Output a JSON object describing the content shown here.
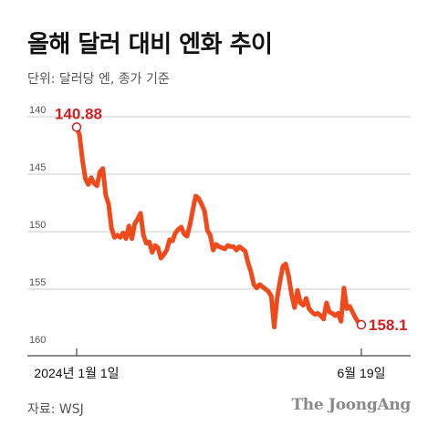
{
  "header": {
    "title": "올해 달러 대비 엔화 추이",
    "unit": "단위: 달러당 엔, 종가 기준"
  },
  "footer": {
    "source": "자료: WSJ",
    "brand": "The JoongAng"
  },
  "colors": {
    "line": "#f04a1c",
    "label": "#d21f1f",
    "grid": "#cccccc",
    "axis": "#444444"
  },
  "chart_data": {
    "type": "line",
    "title": "올해 달러 대비 엔화 추이",
    "ylabel": "단위: 달러당 엔, 종가 기준",
    "y_axis_inverted": true,
    "ylim": [
      140,
      160
    ],
    "y_ticks": [
      "140",
      "145",
      "150",
      "155",
      "160"
    ],
    "x_ticks": [
      "2024년 1월 1일",
      "6월 19일"
    ],
    "start_label": "140.88",
    "end_label": "158.1",
    "series": [
      {
        "values": [
          140.9,
          141.6,
          143.8,
          145.4,
          145.9,
          145.3,
          145.8,
          146.0,
          144.8,
          144.5,
          146.8,
          147.6,
          149.7,
          150.5,
          150.3,
          150.5,
          150.1,
          150.6,
          149.5,
          150.6,
          149.3,
          148.9,
          148.4,
          150.3,
          151.0,
          150.9,
          151.8,
          151.2,
          151.4,
          152.3,
          152.0,
          151.6,
          150.7,
          150.8,
          150.1,
          149.8,
          149.6,
          150.2,
          150.4,
          149.4,
          148.1,
          146.9,
          147.1,
          147.6,
          148.2,
          149.9,
          150.3,
          151.6,
          151.1,
          151.3,
          151.4,
          151.5,
          151.2,
          151.3,
          151.3,
          151.6,
          151.3,
          151.5,
          151.7,
          152.7,
          153.5,
          154.6,
          154.9,
          154.6,
          154.8,
          155.0,
          155.2,
          155.6,
          158.3,
          155.8,
          154.3,
          153.0,
          152.8,
          153.9,
          155.5,
          156.6,
          155.1,
          156.2,
          156.4,
          155.8,
          156.7,
          157.0,
          157.2,
          157.1,
          157.3,
          157.6,
          156.2,
          157.0,
          157.1,
          157.3,
          157.1,
          157.8,
          154.9,
          156.7,
          156.5,
          157.0,
          157.5,
          157.9,
          158.1
        ]
      }
    ]
  }
}
